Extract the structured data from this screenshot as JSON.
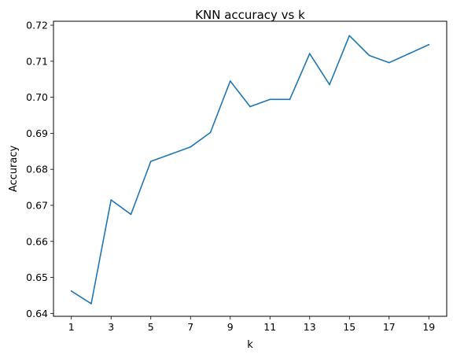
{
  "chart_data": {
    "type": "line",
    "title": "KNN accuracy vs k",
    "xlabel": "k",
    "ylabel": "Accuracy",
    "xlim": [
      0.1,
      19.9
    ],
    "ylim": [
      0.6392,
      0.7211
    ],
    "xticks": [
      1,
      3,
      5,
      7,
      9,
      11,
      13,
      15,
      17,
      19
    ],
    "yticks": [
      0.64,
      0.65,
      0.66,
      0.67,
      0.68,
      0.69,
      0.7,
      0.71,
      0.72
    ],
    "ytick_labels": [
      "0.64",
      "0.65",
      "0.66",
      "0.67",
      "0.68",
      "0.69",
      "0.70",
      "0.71",
      "0.72"
    ],
    "grid": false,
    "series": [
      {
        "x": [
          1,
          2,
          3,
          4,
          5,
          6,
          7,
          8,
          9,
          10,
          11,
          12,
          13,
          14,
          15,
          16,
          17,
          18,
          19
        ],
        "values": [
          0.6462,
          0.6427,
          0.6715,
          0.6675,
          0.6822,
          0.6842,
          0.6862,
          0.6902,
          0.7045,
          0.6974,
          0.6994,
          0.6994,
          0.7121,
          0.7035,
          0.7171,
          0.7116,
          0.7096,
          0.7121,
          0.7146
        ],
        "color": "#1f77b4"
      }
    ]
  }
}
